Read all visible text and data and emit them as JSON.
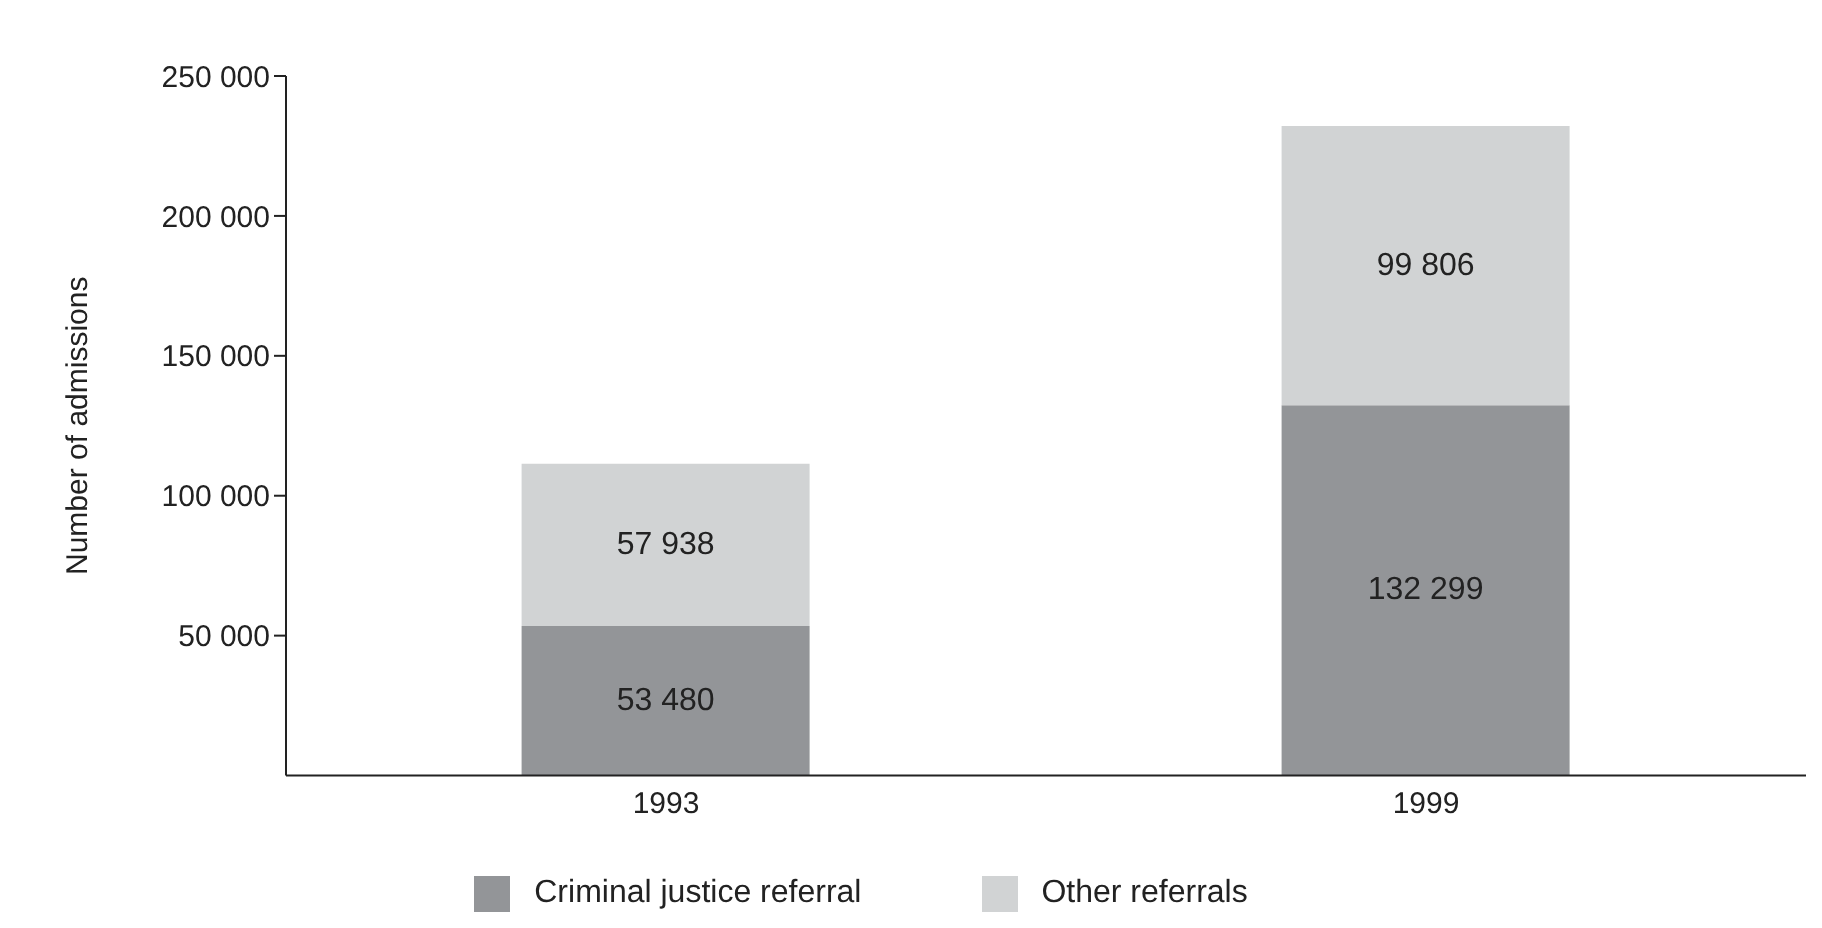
{
  "chart_data": {
    "type": "bar",
    "stacked": true,
    "ylabel": "Number of admissions",
    "categories": [
      "1993",
      "1999"
    ],
    "series": [
      {
        "name": "Criminal justice referral",
        "color": "#939598",
        "values": [
          53480,
          132299
        ],
        "value_labels": [
          "53 480",
          "132 299"
        ]
      },
      {
        "name": "Other referrals",
        "color": "#d1d3d4",
        "values": [
          57938,
          99806
        ],
        "value_labels": [
          "57 938",
          "99 806"
        ]
      }
    ],
    "ylim": [
      0,
      250000
    ],
    "yticks": [
      {
        "value": 50000,
        "label": "50 000"
      },
      {
        "value": 100000,
        "label": "100 000"
      },
      {
        "value": 150000,
        "label": "150 000"
      },
      {
        "value": 200000,
        "label": "200 000"
      },
      {
        "value": 250000,
        "label": "250 000"
      }
    ],
    "grid": false,
    "legend": "bottom"
  }
}
